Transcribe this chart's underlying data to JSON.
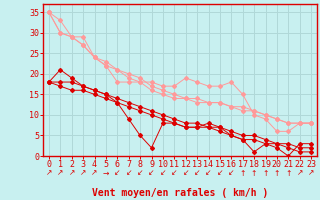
{
  "background_color": "#c8f0f0",
  "grid_color": "#b0d8d8",
  "line_color_dark": "#dd0000",
  "line_color_light": "#ff9999",
  "xlabel": "Vent moyen/en rafales ( km/h )",
  "ylim": [
    0,
    37
  ],
  "xlim": [
    -0.5,
    23.5
  ],
  "yticks": [
    0,
    5,
    10,
    15,
    20,
    25,
    30,
    35
  ],
  "xticks": [
    0,
    1,
    2,
    3,
    4,
    5,
    6,
    7,
    8,
    9,
    10,
    11,
    12,
    13,
    14,
    15,
    16,
    17,
    18,
    19,
    20,
    21,
    22,
    23
  ],
  "series_dark": [
    [
      0,
      18
    ],
    [
      1,
      21
    ],
    [
      2,
      19
    ],
    [
      3,
      17
    ],
    [
      4,
      16
    ],
    [
      5,
      15
    ],
    [
      6,
      13
    ],
    [
      7,
      9
    ],
    [
      8,
      5
    ],
    [
      9,
      2
    ],
    [
      10,
      8
    ],
    [
      11,
      8
    ],
    [
      12,
      7
    ],
    [
      13,
      7
    ],
    [
      14,
      8
    ],
    [
      15,
      7
    ],
    [
      16,
      5
    ],
    [
      17,
      4
    ],
    [
      18,
      1
    ],
    [
      19,
      3
    ],
    [
      20,
      2
    ],
    [
      21,
      0
    ],
    [
      22,
      3
    ],
    [
      23,
      3
    ]
  ],
  "series_dark2": [
    [
      0,
      18
    ],
    [
      1,
      18
    ],
    [
      2,
      18
    ],
    [
      3,
      17
    ],
    [
      4,
      16
    ],
    [
      5,
      15
    ],
    [
      6,
      14
    ],
    [
      7,
      13
    ],
    [
      8,
      12
    ],
    [
      9,
      11
    ],
    [
      10,
      10
    ],
    [
      11,
      9
    ],
    [
      12,
      8
    ],
    [
      13,
      8
    ],
    [
      14,
      7
    ],
    [
      15,
      7
    ],
    [
      16,
      6
    ],
    [
      17,
      5
    ],
    [
      18,
      5
    ],
    [
      19,
      4
    ],
    [
      20,
      3
    ],
    [
      21,
      3
    ],
    [
      22,
      2
    ],
    [
      23,
      2
    ]
  ],
  "series_dark3": [
    [
      0,
      18
    ],
    [
      1,
      17
    ],
    [
      2,
      16
    ],
    [
      3,
      16
    ],
    [
      4,
      15
    ],
    [
      5,
      14
    ],
    [
      6,
      13
    ],
    [
      7,
      12
    ],
    [
      8,
      11
    ],
    [
      9,
      10
    ],
    [
      10,
      9
    ],
    [
      11,
      8
    ],
    [
      12,
      7
    ],
    [
      13,
      7
    ],
    [
      14,
      7
    ],
    [
      15,
      6
    ],
    [
      16,
      5
    ],
    [
      17,
      4
    ],
    [
      18,
      4
    ],
    [
      19,
      3
    ],
    [
      20,
      3
    ],
    [
      21,
      2
    ],
    [
      22,
      1
    ],
    [
      23,
      1
    ]
  ],
  "series_light1": [
    [
      0,
      35
    ],
    [
      1,
      33
    ],
    [
      2,
      29
    ],
    [
      3,
      29
    ],
    [
      4,
      24
    ],
    [
      5,
      22
    ],
    [
      6,
      18
    ],
    [
      7,
      18
    ],
    [
      8,
      18
    ],
    [
      9,
      18
    ],
    [
      10,
      17
    ],
    [
      11,
      17
    ],
    [
      12,
      19
    ],
    [
      13,
      18
    ],
    [
      14,
      17
    ],
    [
      15,
      17
    ],
    [
      16,
      18
    ],
    [
      17,
      15
    ],
    [
      18,
      10
    ],
    [
      19,
      9
    ],
    [
      20,
      6
    ],
    [
      21,
      6
    ],
    [
      22,
      8
    ],
    [
      23,
      8
    ]
  ],
  "series_light2": [
    [
      0,
      35
    ],
    [
      1,
      30
    ],
    [
      2,
      29
    ],
    [
      3,
      27
    ],
    [
      4,
      24
    ],
    [
      5,
      22
    ],
    [
      6,
      21
    ],
    [
      7,
      19
    ],
    [
      8,
      18
    ],
    [
      9,
      16
    ],
    [
      10,
      15
    ],
    [
      11,
      14
    ],
    [
      12,
      14
    ],
    [
      13,
      14
    ],
    [
      14,
      13
    ],
    [
      15,
      13
    ],
    [
      16,
      12
    ],
    [
      17,
      12
    ],
    [
      18,
      11
    ],
    [
      19,
      10
    ],
    [
      20,
      9
    ],
    [
      21,
      8
    ],
    [
      22,
      8
    ],
    [
      23,
      8
    ]
  ],
  "series_light3": [
    [
      0,
      35
    ],
    [
      1,
      30
    ],
    [
      2,
      29
    ],
    [
      3,
      27
    ],
    [
      4,
      24
    ],
    [
      5,
      23
    ],
    [
      6,
      21
    ],
    [
      7,
      20
    ],
    [
      8,
      19
    ],
    [
      9,
      17
    ],
    [
      10,
      16
    ],
    [
      11,
      15
    ],
    [
      12,
      14
    ],
    [
      13,
      13
    ],
    [
      14,
      13
    ],
    [
      15,
      13
    ],
    [
      16,
      12
    ],
    [
      17,
      11
    ],
    [
      18,
      11
    ],
    [
      19,
      10
    ],
    [
      20,
      9
    ],
    [
      21,
      8
    ],
    [
      22,
      8
    ],
    [
      23,
      8
    ]
  ],
  "arrows": [
    "↗",
    "↗",
    "↗",
    "↗",
    "↗",
    "→",
    "↙",
    "↙",
    "↙",
    "↙",
    "↙",
    "↙",
    "↙",
    "↙",
    "↙",
    "↙",
    "↙",
    "↑",
    "↑",
    "↑",
    "↑",
    "↑",
    "↗",
    "↗"
  ],
  "xlabel_fontsize": 7,
  "tick_fontsize": 6,
  "arrow_fontsize": 5.5
}
